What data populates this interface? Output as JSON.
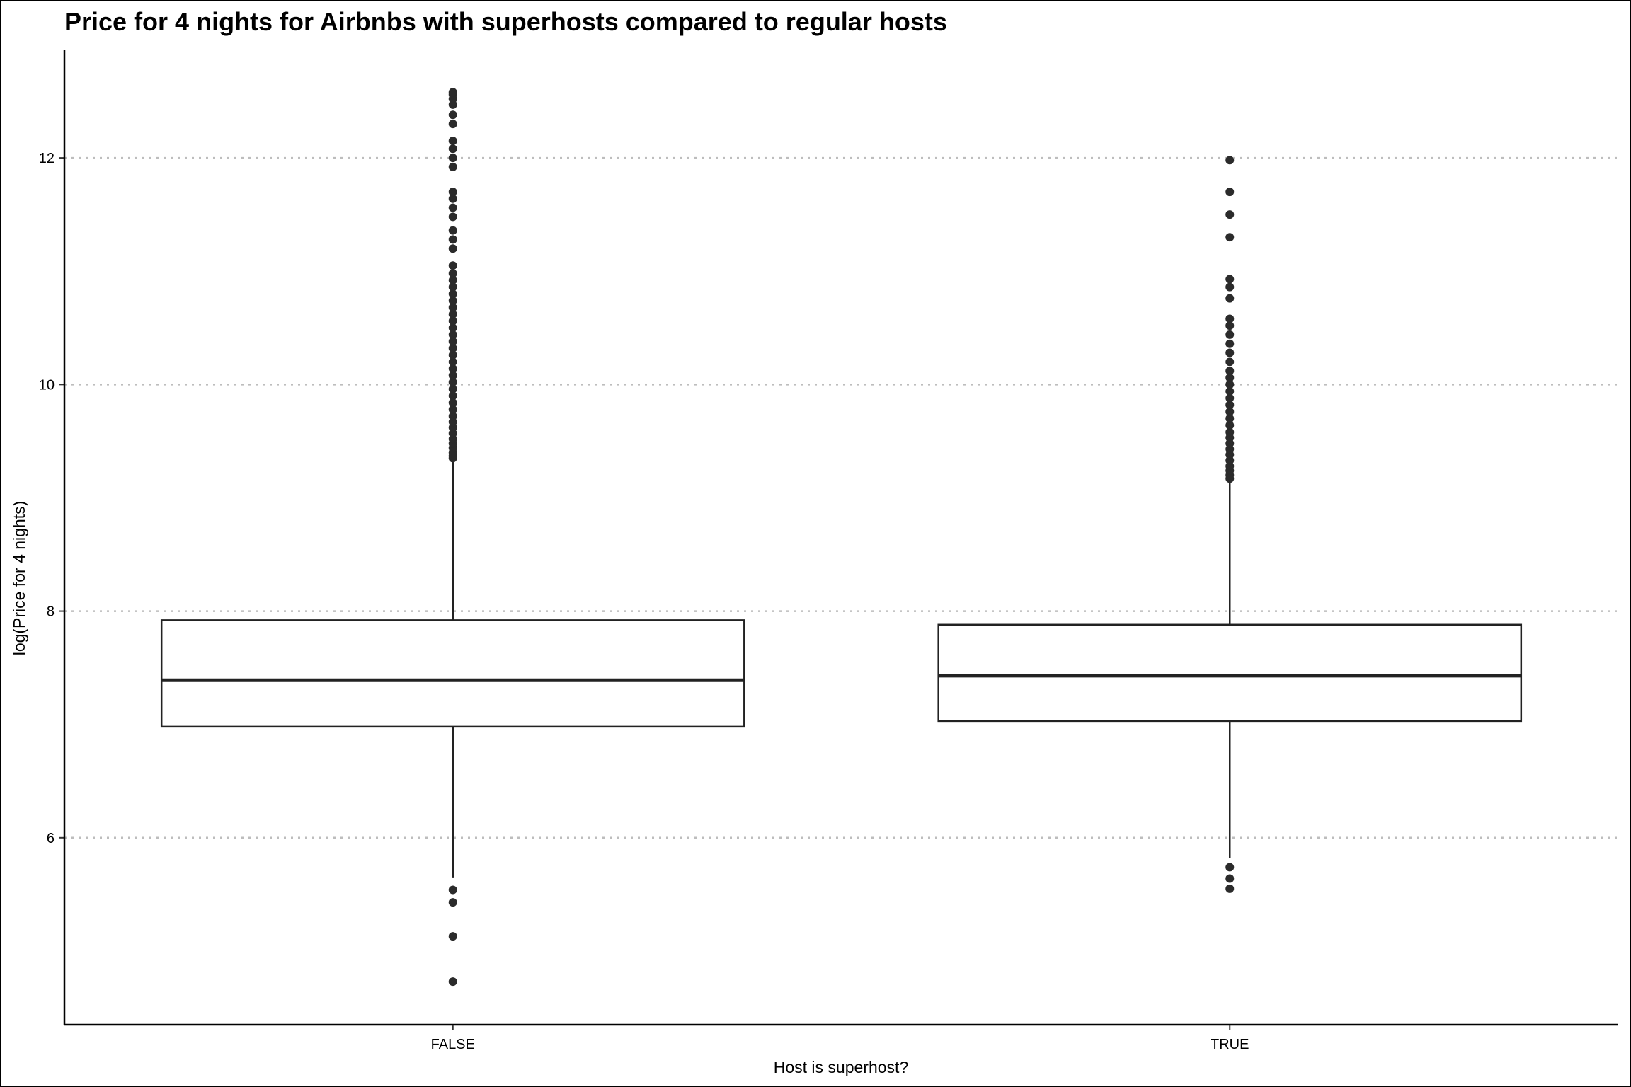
{
  "chart_data": {
    "type": "box",
    "title": "Price for 4 nights for Airbnbs with superhosts compared to regular hosts",
    "xlabel": "Host is superhost?",
    "ylabel": "log(Price for 4 nights)",
    "ylim": [
      4.35,
      12.95
    ],
    "yticks": [
      "6",
      "8",
      "10",
      "12"
    ],
    "ytick_values": [
      6,
      8,
      10,
      12
    ],
    "grid": "horizontal dotted",
    "categories": [
      "FALSE",
      "TRUE"
    ],
    "boxes": [
      {
        "category": "FALSE",
        "whisker_low": 5.65,
        "q1": 6.98,
        "median": 7.39,
        "q3": 7.92,
        "whisker_high": 9.33,
        "outliers": [
          4.73,
          5.13,
          5.43,
          5.54,
          9.35,
          9.37,
          9.4,
          9.44,
          9.48,
          9.52,
          9.57,
          9.62,
          9.67,
          9.72,
          9.78,
          9.84,
          9.9,
          9.96,
          10.02,
          10.08,
          10.14,
          10.2,
          10.26,
          10.32,
          10.38,
          10.44,
          10.5,
          10.56,
          10.62,
          10.68,
          10.74,
          10.8,
          10.86,
          10.92,
          10.98,
          11.05,
          11.2,
          11.28,
          11.36,
          11.48,
          11.56,
          11.64,
          11.7,
          11.92,
          12.0,
          12.08,
          12.15,
          12.3,
          12.38,
          12.47,
          12.52,
          12.56,
          12.58
        ]
      },
      {
        "category": "TRUE",
        "whisker_low": 5.82,
        "q1": 7.03,
        "median": 7.43,
        "q3": 7.88,
        "whisker_high": 9.15,
        "outliers": [
          5.55,
          5.64,
          5.74,
          9.17,
          9.2,
          9.24,
          9.28,
          9.33,
          9.38,
          9.43,
          9.48,
          9.53,
          9.58,
          9.64,
          9.7,
          9.76,
          9.82,
          9.88,
          9.94,
          10.0,
          10.06,
          10.12,
          10.2,
          10.28,
          10.36,
          10.44,
          10.52,
          10.58,
          10.76,
          10.86,
          10.93,
          11.3,
          11.5,
          11.7,
          11.98
        ]
      }
    ]
  }
}
